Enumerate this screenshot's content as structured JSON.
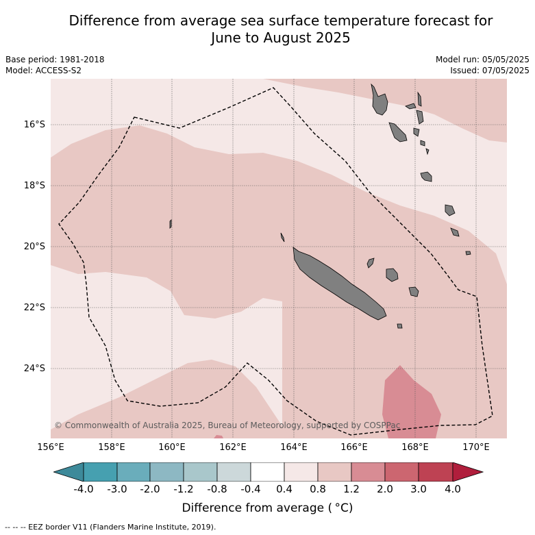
{
  "title_line1": "Difference from average sea surface temperature forecast for",
  "title_line2": "June to August 2025",
  "meta": {
    "base_period": "Base period: 1981-2018",
    "model": "Model: ACCESS-S2",
    "model_run": "Model run: 05/05/2025",
    "issued": "Issued: 07/05/2025"
  },
  "map": {
    "extent_lon": [
      156,
      171
    ],
    "extent_lat": [
      -26.3,
      -14.5
    ],
    "lat_labels": [
      "16°S",
      "18°S",
      "20°S",
      "22°S",
      "24°S"
    ],
    "lon_labels": [
      "156°E",
      "158°E",
      "160°E",
      "162°E",
      "164°E",
      "166°E",
      "168°E",
      "170°E"
    ],
    "copyright": "© Commonwealth of Australia 2025, Bureau of Meteorology, supported by COSPPac",
    "colors": {
      "anom_0_4": "#f5e8e7",
      "anom_0_8": "#e8c8c4",
      "anom_1_2": "#d88c94",
      "land": "#808080",
      "eez_border": "#000000"
    }
  },
  "colorbar": {
    "ticks": [
      "-4.0",
      "-3.0",
      "-2.0",
      "-1.2",
      "-0.8",
      "-0.4",
      "0.4",
      "0.8",
      "1.2",
      "2.0",
      "3.0",
      "4.0"
    ],
    "colors": [
      "#3d8a9a",
      "#46a0b0",
      "#6aadbb",
      "#8db8c3",
      "#a9c7cb",
      "#ccd8da",
      "#ffffff",
      "#f5e8e7",
      "#e8c8c4",
      "#d88c94",
      "#cc6670",
      "#be4253",
      "#b01e3c"
    ],
    "label": "Difference from average ( °C)"
  },
  "legend_note": "--  --  -- EEZ border V11 (Flanders Marine Institute, 2019)."
}
